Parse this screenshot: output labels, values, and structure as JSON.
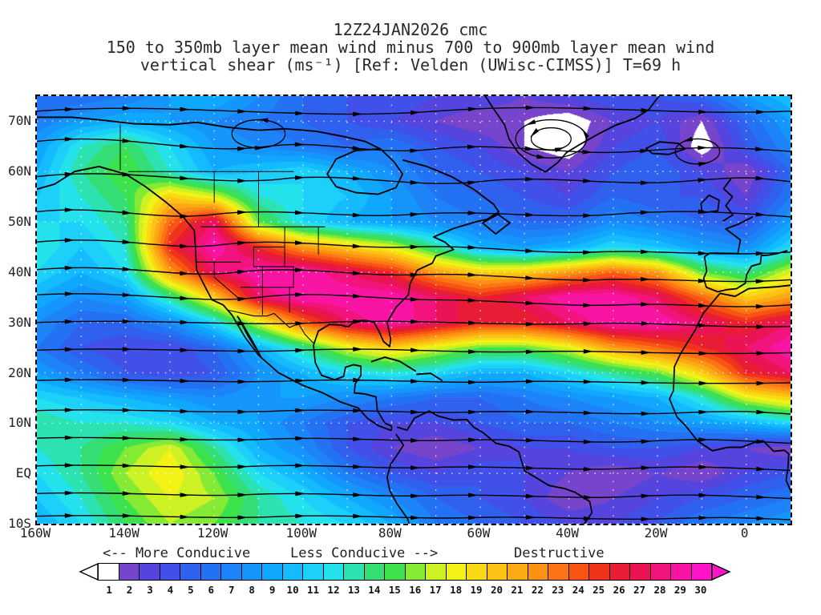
{
  "title": {
    "line1": "12Z24JAN2026 cmc",
    "line2": "150 to 350mb layer mean wind minus 700 to 900mb layer mean wind",
    "line3": "vertical shear (ms⁻¹) [Ref: Velden (UWisc-CIMSS)] T=69 h"
  },
  "axes": {
    "lat_labels": [
      "70N",
      "60N",
      "50N",
      "40N",
      "30N",
      "20N",
      "10N",
      "EQ",
      "10S"
    ],
    "lat_values": [
      70,
      60,
      50,
      40,
      30,
      20,
      10,
      0,
      -10
    ],
    "lon_labels": [
      "160W",
      "140W",
      "120W",
      "100W",
      "80W",
      "60W",
      "40W",
      "20W",
      "0"
    ],
    "lon_values": [
      -160,
      -140,
      -120,
      -100,
      -80,
      -60,
      -40,
      -20,
      0
    ]
  },
  "legend": {
    "more": "<-- More Conducive",
    "less": "Less Conducive -->",
    "destructive": "Destructive"
  },
  "colorbar": {
    "labels": [
      "1",
      "2",
      "3",
      "4",
      "5",
      "6",
      "7",
      "8",
      "9",
      "10",
      "11",
      "12",
      "13",
      "14",
      "15",
      "16",
      "17",
      "18",
      "19",
      "20",
      "21",
      "22",
      "23",
      "24",
      "25",
      "26",
      "27",
      "28",
      "29",
      "30"
    ],
    "colors": [
      "#FFFFFF",
      "#7744CC",
      "#5544DD",
      "#4050E8",
      "#3060EE",
      "#2472F4",
      "#1C84F8",
      "#1496FC",
      "#10A8FE",
      "#14BCFF",
      "#1CD0FA",
      "#24E2EC",
      "#2CE2B0",
      "#34DE74",
      "#3CE24C",
      "#84EA34",
      "#CCF224",
      "#F2F214",
      "#F8DA14",
      "#FCC214",
      "#FCAA14",
      "#FC9214",
      "#FC7414",
      "#F85414",
      "#F0341C",
      "#E81C34",
      "#EA1454",
      "#F2147C",
      "#F914A4",
      "#FF14CC"
    ],
    "arrow_left_color": "#FFFFFF",
    "arrow_right_color": "#FF14CC"
  },
  "chart_data": {
    "type": "heatmap",
    "variable": "vertical wind shear: 150-350mb layer mean wind minus 700-900mb layer mean wind",
    "units": "ms⁻¹",
    "model": "cmc",
    "valid_time": "12Z24JAN2026",
    "forecast_hour_label": "T=69 h",
    "reference": "Velden (UWisc-CIMSS)",
    "lon_min": -160,
    "lon_max": 10,
    "lat_min": -10,
    "lat_max": 75,
    "scale": {
      "min": 1,
      "max": 30
    },
    "grid": {
      "lons": [
        -160,
        -150,
        -140,
        -130,
        -120,
        -110,
        -100,
        -90,
        -80,
        -70,
        -60,
        -50,
        -40,
        -30,
        -20,
        -10,
        0,
        10
      ],
      "lats": [
        75,
        70,
        65,
        60,
        55,
        50,
        45,
        40,
        35,
        30,
        25,
        20,
        15,
        10,
        5,
        0,
        -5,
        -10
      ],
      "shear_values": [
        [
          6,
          6,
          7,
          9,
          10,
          8,
          6,
          5,
          5,
          4,
          4,
          3,
          4,
          5,
          5,
          6,
          9,
          11
        ],
        [
          7,
          9,
          10,
          9,
          8,
          7,
          6,
          5,
          4,
          3,
          2,
          2,
          1,
          3,
          4,
          2,
          6,
          9
        ],
        [
          9,
          13,
          15,
          12,
          9,
          8,
          7,
          6,
          7,
          5,
          4,
          2,
          1,
          4,
          5,
          1,
          5,
          8
        ],
        [
          10,
          14,
          16,
          13,
          10,
          11,
          12,
          10,
          8,
          6,
          5,
          4,
          3,
          5,
          6,
          4,
          2,
          6
        ],
        [
          11,
          13,
          15,
          20,
          18,
          13,
          12,
          11,
          9,
          7,
          6,
          5,
          4,
          6,
          5,
          5,
          3,
          7
        ],
        [
          12,
          12,
          14,
          24,
          28,
          16,
          12,
          10,
          9,
          8,
          7,
          6,
          6,
          8,
          7,
          6,
          5,
          9
        ],
        [
          13,
          11,
          13,
          26,
          30,
          26,
          22,
          20,
          18,
          14,
          10,
          9,
          10,
          12,
          11,
          9,
          8,
          12
        ],
        [
          12,
          10,
          12,
          22,
          28,
          30,
          30,
          28,
          26,
          22,
          20,
          20,
          22,
          24,
          22,
          16,
          14,
          18
        ],
        [
          10,
          8,
          9,
          14,
          20,
          28,
          30,
          30,
          30,
          28,
          26,
          28,
          30,
          30,
          28,
          24,
          20,
          22
        ],
        [
          8,
          6,
          6,
          8,
          12,
          18,
          24,
          28,
          30,
          28,
          26,
          26,
          28,
          30,
          30,
          28,
          26,
          28
        ],
        [
          7,
          5,
          4,
          4,
          6,
          10,
          14,
          18,
          20,
          18,
          16,
          16,
          18,
          22,
          24,
          26,
          28,
          30
        ],
        [
          9,
          7,
          5,
          4,
          5,
          8,
          10,
          12,
          13,
          12,
          10,
          10,
          12,
          14,
          16,
          20,
          26,
          28
        ],
        [
          12,
          11,
          10,
          9,
          8,
          9,
          9,
          8,
          7,
          6,
          6,
          7,
          8,
          9,
          10,
          13,
          18,
          20
        ],
        [
          14,
          13,
          13,
          12,
          10,
          9,
          7,
          5,
          4,
          4,
          5,
          6,
          6,
          7,
          8,
          9,
          10,
          12
        ],
        [
          13,
          14,
          16,
          18,
          14,
          10,
          8,
          5,
          3,
          2,
          3,
          4,
          4,
          5,
          5,
          4,
          3,
          2
        ],
        [
          12,
          14,
          17,
          19,
          16,
          12,
          10,
          7,
          5,
          4,
          5,
          4,
          3,
          2,
          3,
          2,
          4,
          5
        ],
        [
          11,
          13,
          16,
          18,
          17,
          14,
          12,
          10,
          8,
          6,
          5,
          4,
          2,
          3,
          4,
          5,
          6,
          7
        ],
        [
          10,
          12,
          15,
          17,
          16,
          14,
          13,
          12,
          10,
          7,
          6,
          5,
          4,
          4,
          5,
          7,
          8,
          9
        ]
      ]
    }
  }
}
